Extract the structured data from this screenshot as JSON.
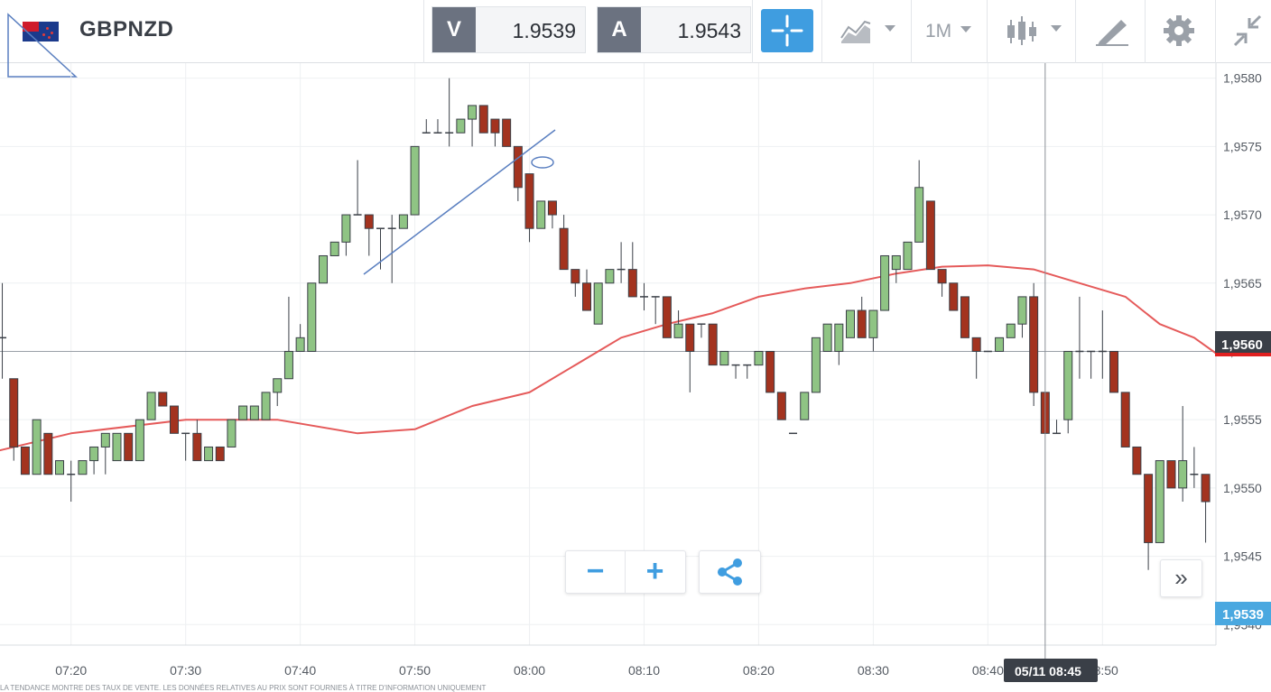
{
  "instrument": {
    "symbol": "GBPNZD"
  },
  "quotes": {
    "bid_label": "V",
    "bid": "1.9539",
    "ask_label": "A",
    "ask": "1.9543"
  },
  "toolbar": {
    "timeframe": "1M"
  },
  "icons": {
    "flag": "gbp-nzd-flag-icon",
    "crosshair": "crosshair-icon",
    "chart_type": "area-chart-icon",
    "candles": "candlestick-icon",
    "drawing": "drawing-pencil-icon",
    "settings": "gear-icon",
    "collapse": "collapse-arrows-icon",
    "share": "share-icon",
    "forward": "double-chevron-right-icon"
  },
  "colors": {
    "up": "#8fc484",
    "down": "#a3331f",
    "ma": "#e55a5a",
    "accent": "#3f9de0",
    "drawing": "#5a7fc0"
  },
  "controls": {
    "zoom_out": "−",
    "zoom_in": "+",
    "forward": "»"
  },
  "price_labels": {
    "current": "1,9560",
    "last": "1,9539"
  },
  "crosshair": {
    "time_label": "05/11 08:45"
  },
  "footer": "LA TENDANCE MONTRE DES TAUX DE VENTE. LES DONNÉES RELATIVES AU PRIX SONT FOURNIES À TITRE D'INFORMATION UNIQUEMENT",
  "chart_data": {
    "type": "candlestick",
    "instrument": "GBPNZD",
    "timeframe": "1M",
    "y_ticks": [
      "1,9580",
      "1,9575",
      "1,9570",
      "1,9565",
      "1,9560",
      "1,9555",
      "1,9550",
      "1,9545",
      "1,9540"
    ],
    "y_range": [
      1.95385,
      1.95811
    ],
    "x_ticks": [
      "07:20",
      "07:30",
      "07:40",
      "07:50",
      "08:00",
      "08:10",
      "08:20",
      "08:30",
      "08:40",
      "08:50"
    ],
    "x_range_minutes": [
      433.8,
      539.9
    ],
    "first_candle_minute": 433,
    "candles": [
      [
        1.9553,
        1.9562,
        1.9562,
        1.9553
      ],
      [
        1.9561,
        1.9565,
        1.9561,
        1.9558
      ],
      [
        1.9558,
        1.9558,
        1.9553,
        1.9552
      ],
      [
        1.9553,
        1.9553,
        1.9551,
        1.9551
      ],
      [
        1.9551,
        1.9555,
        1.9555,
        1.9551
      ],
      [
        1.9554,
        1.9554,
        1.9551,
        1.9551
      ],
      [
        1.9551,
        1.9551,
        1.9552,
        1.9551
      ],
      [
        1.9551,
        1.9552,
        1.9551,
        1.9549
      ],
      [
        1.9551,
        1.9552,
        1.9552,
        1.9551
      ],
      [
        1.9552,
        1.9553,
        1.9553,
        1.9551
      ],
      [
        1.9553,
        1.9554,
        1.9554,
        1.9551
      ],
      [
        1.9552,
        1.9554,
        1.9554,
        1.9552
      ],
      [
        1.9554,
        1.9554,
        1.9552,
        1.9552
      ],
      [
        1.9552,
        1.9555,
        1.9555,
        1.9552
      ],
      [
        1.9555,
        1.9557,
        1.9557,
        1.9555
      ],
      [
        1.9557,
        1.9557,
        1.9556,
        1.9556
      ],
      [
        1.9556,
        1.9556,
        1.9554,
        1.9554
      ],
      [
        1.9554,
        1.9554,
        1.9554,
        1.9552
      ],
      [
        1.9554,
        1.9555,
        1.9552,
        1.9552
      ],
      [
        1.9552,
        1.9553,
        1.9553,
        1.9552
      ],
      [
        1.9553,
        1.9553,
        1.9552,
        1.9552
      ],
      [
        1.9553,
        1.9555,
        1.9555,
        1.9553
      ],
      [
        1.9555,
        1.9556,
        1.9556,
        1.9555
      ],
      [
        1.9555,
        1.9556,
        1.9556,
        1.9555
      ],
      [
        1.9555,
        1.9557,
        1.9557,
        1.9555
      ],
      [
        1.9557,
        1.9558,
        1.9558,
        1.9556
      ],
      [
        1.9558,
        1.9564,
        1.956,
        1.9558
      ],
      [
        1.956,
        1.9562,
        1.9561,
        1.956
      ],
      [
        1.956,
        1.9565,
        1.9565,
        1.956
      ],
      [
        1.9565,
        1.9567,
        1.9567,
        1.9565
      ],
      [
        1.9567,
        1.9567,
        1.9568,
        1.9567
      ],
      [
        1.9568,
        1.957,
        1.957,
        1.9567
      ],
      [
        1.957,
        1.9574,
        1.957,
        1.957
      ],
      [
        1.957,
        1.957,
        1.9569,
        1.9567
      ],
      [
        1.9569,
        1.9569,
        1.9569,
        1.9566
      ],
      [
        1.9569,
        1.957,
        1.9569,
        1.9565
      ],
      [
        1.9569,
        1.957,
        1.957,
        1.9569
      ],
      [
        1.957,
        1.9575,
        1.9575,
        1.957
      ],
      [
        1.9576,
        1.9577,
        1.9576,
        1.9576
      ],
      [
        1.9576,
        1.9577,
        1.9576,
        1.9576
      ],
      [
        1.9576,
        1.958,
        1.9576,
        1.9575
      ],
      [
        1.9576,
        1.9577,
        1.9577,
        1.9576
      ],
      [
        1.9577,
        1.9578,
        1.9578,
        1.9575
      ],
      [
        1.9578,
        1.9578,
        1.9576,
        1.9576
      ],
      [
        1.9577,
        1.9577,
        1.9576,
        1.9575
      ],
      [
        1.9577,
        1.9577,
        1.9575,
        1.9575
      ],
      [
        1.9575,
        1.9575,
        1.9572,
        1.9571
      ],
      [
        1.9573,
        1.9573,
        1.9569,
        1.9568
      ],
      [
        1.9569,
        1.9571,
        1.9571,
        1.9569
      ],
      [
        1.9571,
        1.9571,
        1.957,
        1.9569
      ],
      [
        1.9569,
        1.957,
        1.9566,
        1.9566
      ],
      [
        1.9566,
        1.9566,
        1.9565,
        1.9564
      ],
      [
        1.9565,
        1.9566,
        1.9563,
        1.9563
      ],
      [
        1.9562,
        1.9565,
        1.9565,
        1.9562
      ],
      [
        1.9565,
        1.9566,
        1.9566,
        1.9565
      ],
      [
        1.9566,
        1.9568,
        1.9566,
        1.9565
      ],
      [
        1.9566,
        1.9568,
        1.9564,
        1.9564
      ],
      [
        1.9564,
        1.9565,
        1.9564,
        1.9563
      ],
      [
        1.9564,
        1.9564,
        1.9564,
        1.9562
      ],
      [
        1.9564,
        1.9564,
        1.9561,
        1.9561
      ],
      [
        1.9561,
        1.9563,
        1.9562,
        1.9561
      ],
      [
        1.9562,
        1.9562,
        1.956,
        1.9557
      ],
      [
        1.9562,
        1.9562,
        1.9562,
        1.9561
      ],
      [
        1.9562,
        1.9562,
        1.9559,
        1.9559
      ],
      [
        1.9559,
        1.956,
        1.956,
        1.9559
      ],
      [
        1.9559,
        1.9559,
        1.9559,
        1.9558
      ],
      [
        1.9559,
        1.9559,
        1.9559,
        1.9558
      ],
      [
        1.9559,
        1.956,
        1.956,
        1.9559
      ],
      [
        1.956,
        1.956,
        1.9557,
        1.9557
      ],
      [
        1.9557,
        1.9557,
        1.9555,
        1.9555
      ],
      [
        1.9554,
        1.9554,
        1.9554,
        1.9554
      ],
      [
        1.9555,
        1.9557,
        1.9557,
        1.9555
      ],
      [
        1.9557,
        1.9561,
        1.9561,
        1.9557
      ],
      [
        1.956,
        1.9562,
        1.9562,
        1.956
      ],
      [
        1.956,
        1.9562,
        1.9562,
        1.9559
      ],
      [
        1.9561,
        1.9562,
        1.9563,
        1.9561
      ],
      [
        1.9563,
        1.9564,
        1.9561,
        1.9561
      ],
      [
        1.9561,
        1.9563,
        1.9563,
        1.956
      ],
      [
        1.9563,
        1.9567,
        1.9567,
        1.9563
      ],
      [
        1.9566,
        1.9567,
        1.9567,
        1.9565
      ],
      [
        1.9566,
        1.9568,
        1.9568,
        1.9566
      ],
      [
        1.9568,
        1.9574,
        1.9572,
        1.9568
      ],
      [
        1.9571,
        1.9571,
        1.9566,
        1.9566
      ],
      [
        1.9566,
        1.9566,
        1.9565,
        1.9564
      ],
      [
        1.9565,
        1.9565,
        1.9563,
        1.9564
      ],
      [
        1.9564,
        1.9564,
        1.9561,
        1.9561
      ],
      [
        1.9561,
        1.9561,
        1.956,
        1.9558
      ],
      [
        1.956,
        1.956,
        1.956,
        1.956
      ],
      [
        1.956,
        1.956,
        1.9561,
        1.956
      ],
      [
        1.9561,
        1.9562,
        1.9562,
        1.9561
      ],
      [
        1.9562,
        1.9564,
        1.9564,
        1.9561
      ],
      [
        1.9564,
        1.9565,
        1.9557,
        1.9556
      ],
      [
        1.9557,
        1.9557,
        1.9554,
        1.9554
      ],
      [
        1.9554,
        1.9555,
        1.9554,
        1.9554
      ],
      [
        1.9555,
        1.9555,
        1.956,
        1.9554
      ],
      [
        1.956,
        1.9564,
        1.956,
        1.9558
      ],
      [
        1.956,
        1.956,
        1.956,
        1.9558
      ],
      [
        1.956,
        1.9563,
        1.956,
        1.9558
      ],
      [
        1.956,
        1.956,
        1.9557,
        1.9557
      ],
      [
        1.9557,
        1.9557,
        1.9553,
        1.9553
      ],
      [
        1.9553,
        1.9553,
        1.9551,
        1.9551
      ],
      [
        1.9551,
        1.9551,
        1.9546,
        1.9544
      ],
      [
        1.9546,
        1.9552,
        1.9552,
        1.9546
      ],
      [
        1.9552,
        1.9552,
        1.955,
        1.955
      ],
      [
        1.955,
        1.9556,
        1.9552,
        1.9549
      ],
      [
        1.9551,
        1.9553,
        1.9551,
        1.955
      ],
      [
        1.9551,
        1.9551,
        1.9549,
        1.9546
      ]
    ],
    "moving_average": [
      [
        430,
        1.9552
      ],
      [
        440,
        1.9554
      ],
      [
        450,
        1.9555
      ],
      [
        458,
        1.9555
      ],
      [
        465,
        1.9554
      ],
      [
        470,
        1.95543
      ],
      [
        475,
        1.9556
      ],
      [
        480,
        1.9557
      ],
      [
        484,
        1.9559
      ],
      [
        488,
        1.9561
      ],
      [
        492,
        1.9562
      ],
      [
        496,
        1.95628
      ],
      [
        500,
        1.9564
      ],
      [
        504,
        1.95646
      ],
      [
        508,
        1.9565
      ],
      [
        512,
        1.95657
      ],
      [
        516,
        1.95662
      ],
      [
        520,
        1.95663
      ],
      [
        524,
        1.9566
      ],
      [
        528,
        1.9565
      ],
      [
        532,
        1.9564
      ],
      [
        535,
        1.9562
      ],
      [
        538,
        1.9561
      ],
      [
        540,
        1.95598
      ]
    ],
    "current_price_line": 1.956,
    "crosshair_minute": 525
  }
}
